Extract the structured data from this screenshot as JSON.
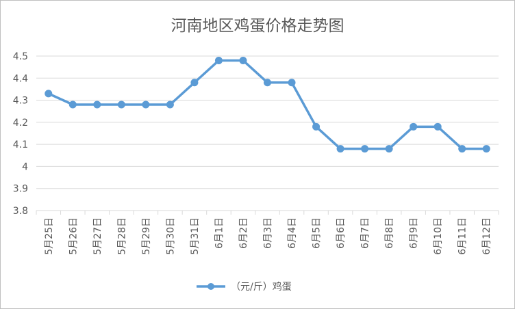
{
  "chart_data": {
    "type": "line",
    "title": "河南地区鸡蛋价格走势图",
    "categories": [
      "5月25日",
      "5月26日",
      "5月27日",
      "5月28日",
      "5月29日",
      "5月30日",
      "5月31日",
      "6月1日",
      "6月2日",
      "6月3日",
      "6月4日",
      "6月5日",
      "6月6日",
      "6月7日",
      "6月8日",
      "6月9日",
      "6月10日",
      "6月11日",
      "6月12日"
    ],
    "series": [
      {
        "name": "（元/斤）鸡蛋",
        "values": [
          4.33,
          4.28,
          4.28,
          4.28,
          4.28,
          4.28,
          4.38,
          4.48,
          4.48,
          4.38,
          4.38,
          4.18,
          4.08,
          4.08,
          4.08,
          4.18,
          4.18,
          4.08,
          4.08
        ],
        "color": "#5b9bd5"
      }
    ],
    "ylim": [
      3.8,
      4.5
    ],
    "yticks": [
      "3.8",
      "3.9",
      "4",
      "4.1",
      "4.2",
      "4.3",
      "4.4",
      "4.5"
    ],
    "grid": true,
    "legend": "bottom"
  }
}
